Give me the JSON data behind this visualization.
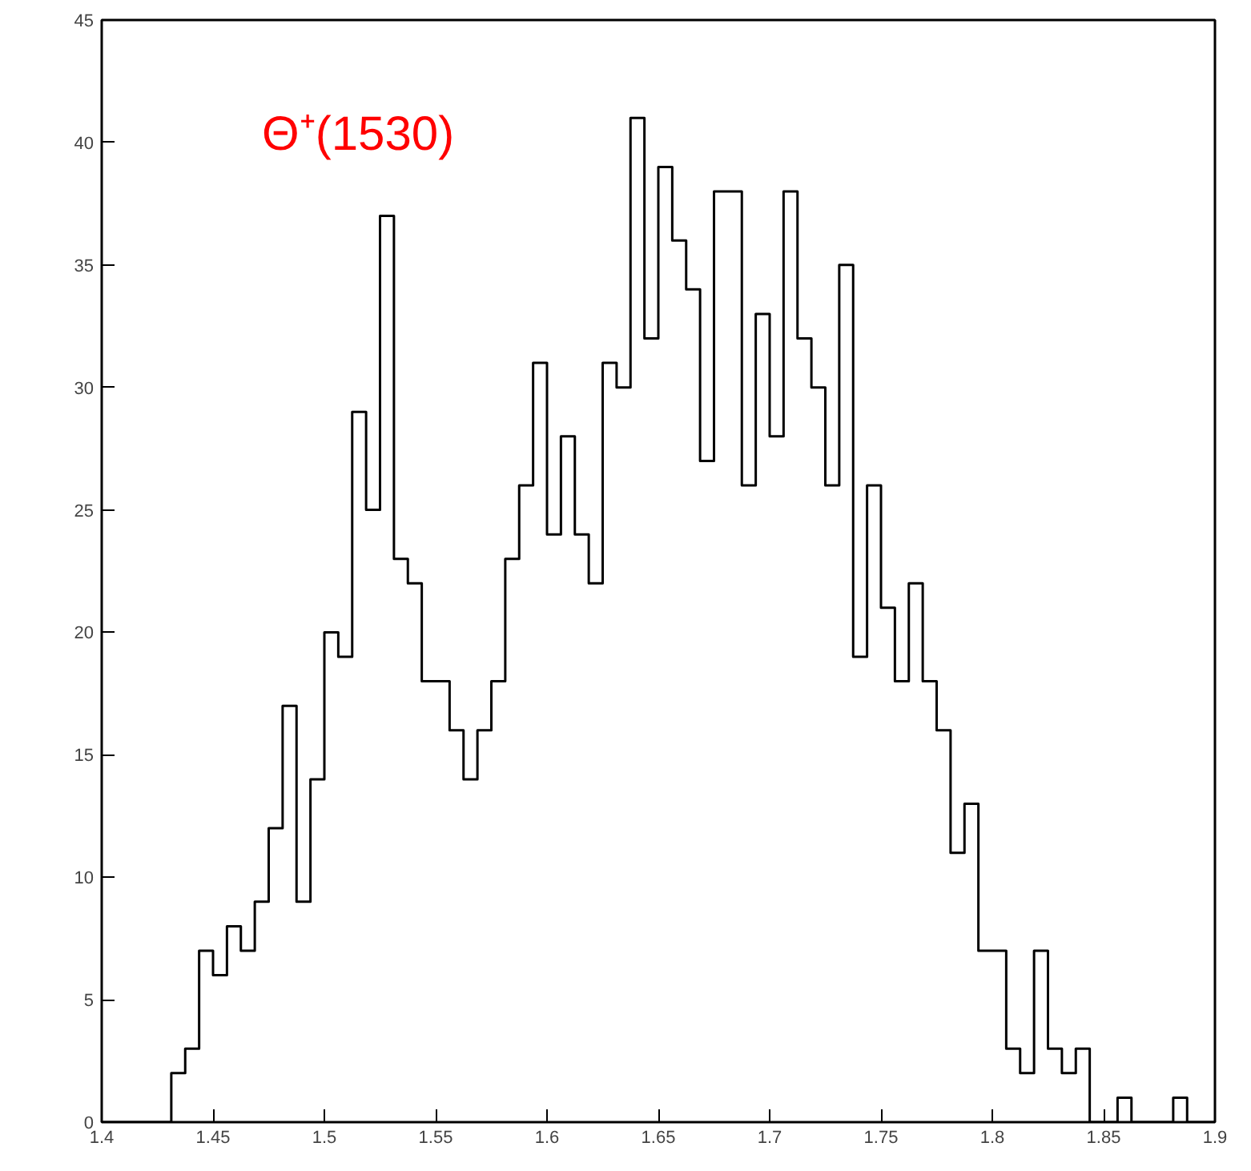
{
  "chart_data": {
    "type": "histogram",
    "bins": [
      1.4,
      1.40625,
      1.4125,
      1.41875,
      1.425,
      1.43125,
      1.4375,
      1.44375,
      1.45,
      1.45625,
      1.4625,
      1.46875,
      1.475,
      1.48125,
      1.4875,
      1.49375,
      1.5,
      1.50625,
      1.5125,
      1.51875,
      1.525,
      1.53125,
      1.5375,
      1.54375,
      1.55,
      1.55625,
      1.5625,
      1.56875,
      1.575,
      1.58125,
      1.5875,
      1.59375,
      1.6,
      1.60625,
      1.6125,
      1.61875,
      1.625,
      1.63125,
      1.6375,
      1.64375,
      1.65,
      1.65625,
      1.6625,
      1.66875,
      1.675,
      1.68125,
      1.6875,
      1.69375,
      1.7,
      1.70625,
      1.7125,
      1.71875,
      1.725,
      1.73125,
      1.7375,
      1.74375,
      1.75,
      1.75625,
      1.7625,
      1.76875,
      1.775,
      1.78125,
      1.7875,
      1.79375,
      1.8,
      1.80625,
      1.8125,
      1.81875,
      1.825,
      1.83125,
      1.8375,
      1.84375,
      1.85,
      1.85625,
      1.8625,
      1.86875,
      1.875,
      1.88125,
      1.8875,
      1.89375,
      1.9
    ],
    "values": [
      0,
      0,
      0,
      0,
      0,
      2,
      3,
      7,
      6,
      8,
      7,
      9,
      12,
      17,
      9,
      14,
      20,
      19,
      29,
      25,
      37,
      23,
      22,
      18,
      18,
      16,
      14,
      16,
      18,
      23,
      26,
      31,
      24,
      28,
      24,
      22,
      31,
      30,
      41,
      32,
      39,
      36,
      34,
      27,
      38,
      38,
      26,
      33,
      28,
      38,
      32,
      30,
      26,
      35,
      19,
      26,
      21,
      18,
      22,
      18,
      16,
      11,
      13,
      7,
      7,
      3,
      2,
      7,
      3,
      2,
      3,
      0,
      0,
      1,
      0,
      0,
      0,
      1,
      0,
      0
    ],
    "color": "#000000",
    "xlim": [
      1.4,
      1.9
    ],
    "xticks": [
      1.4,
      1.45,
      1.5,
      1.55,
      1.6,
      1.65,
      1.7,
      1.75,
      1.8,
      1.85,
      1.9
    ],
    "ylim": [
      0,
      45
    ],
    "yticks": [
      0,
      5,
      10,
      15,
      20,
      25,
      30,
      35,
      40,
      45
    ],
    "annotations": [
      "Θ⁺(1530)"
    ],
    "grid": false
  }
}
